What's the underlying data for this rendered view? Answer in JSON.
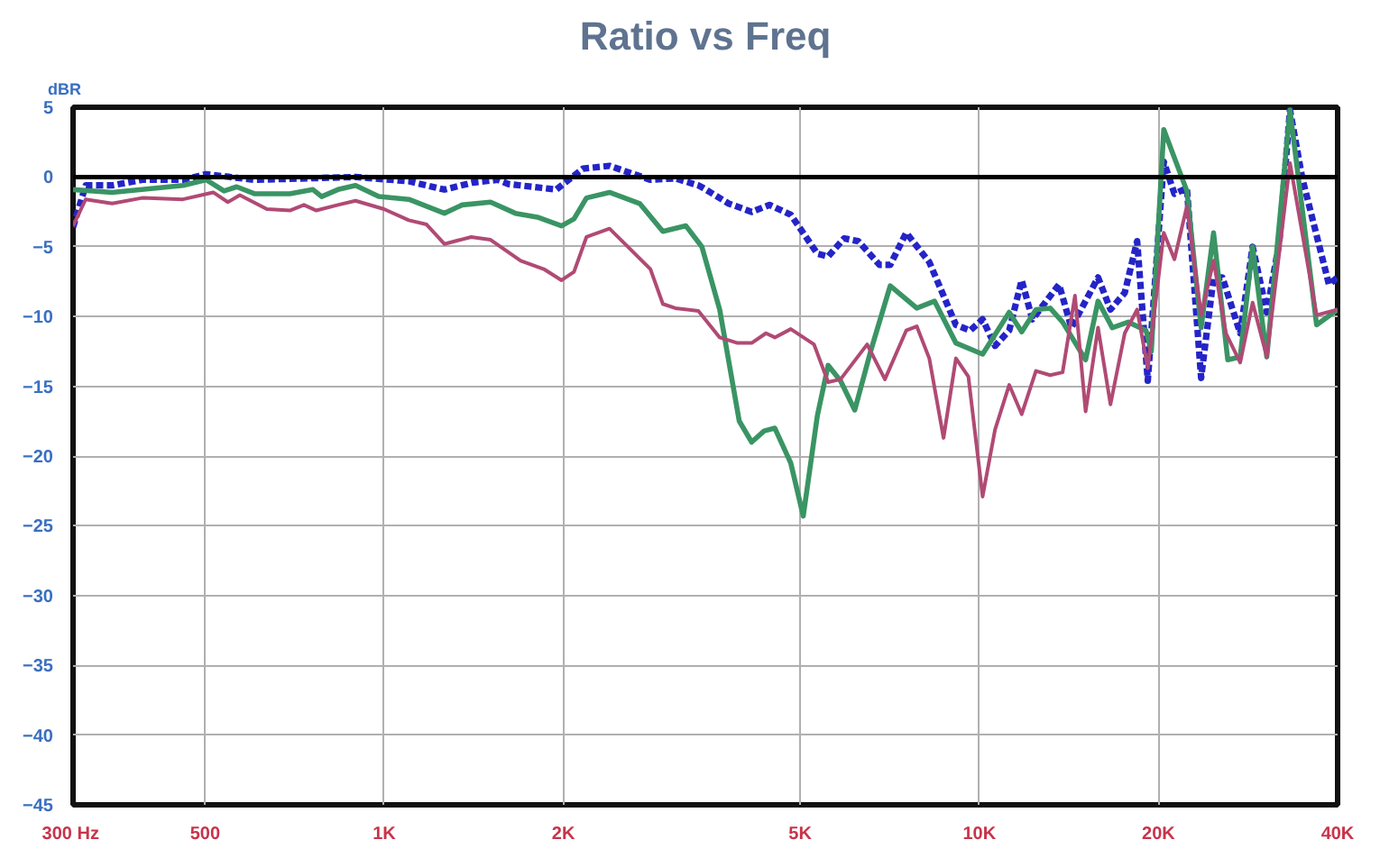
{
  "chart_data": {
    "type": "line",
    "title": "Ratio vs Freq",
    "ylabel": "dBR",
    "log": "x",
    "grid": true,
    "xlim": [
      300,
      40000
    ],
    "ylim": [
      -45,
      5
    ],
    "xticks": [
      {
        "value": 300,
        "label": "300  Hz"
      },
      500,
      {
        "value": 1000,
        "label": "1K"
      },
      {
        "value": 2000,
        "label": "2K"
      },
      {
        "value": 5000,
        "label": "5K"
      },
      {
        "value": 10000,
        "label": "10K"
      },
      {
        "value": 20000,
        "label": "20K"
      },
      {
        "value": 40000,
        "label": "40K"
      }
    ],
    "yticks": [
      5,
      0,
      -5,
      -10,
      -15,
      -20,
      -25,
      -30,
      -35,
      -40,
      -45
    ],
    "ref_lines": [
      {
        "axis": "y",
        "value": 0,
        "label": null,
        "color": "#000000"
      }
    ],
    "series": [
      {
        "color": "#2424c8",
        "line_style": "dashed",
        "x": [
          300,
          315,
          349,
          392,
          459,
          502,
          605,
          895,
          1100,
          1262,
          1409,
          1551,
          1616,
          1946,
          2157,
          2391,
          2801,
          3084,
          3372,
          3440,
          3791,
          4144,
          4440,
          4821,
          5344,
          5571,
          5925,
          6260,
          6797,
          7084,
          7536,
          8240,
          9135,
          9653,
          10128,
          10628,
          11226,
          11781,
          12279,
          13613,
          14280,
          15831,
          16611,
          17552,
          18416,
          19191,
          20415,
          21274,
          22325,
          23589,
          24752,
          25615,
          27440,
          28789,
          30414,
          31913,
          33269,
          34894,
          38682,
          40000
        ],
        "values": [
          -3.6,
          -0.6,
          -0.6,
          -0.2,
          -0.2,
          0.2,
          -0.2,
          0,
          -0.3,
          -0.9,
          -0.4,
          -0.2,
          -0.5,
          -0.9,
          0.6,
          0.8,
          -0.2,
          -0.1,
          -0.6,
          -0.8,
          -1.9,
          -2.5,
          -2.0,
          -2.7,
          -5.5,
          -5.7,
          -4.4,
          -4.6,
          -6.3,
          -6.3,
          -4.0,
          -6.1,
          -10.6,
          -11.0,
          -10.2,
          -12.1,
          -11.0,
          -7.4,
          -10.2,
          -7.7,
          -10.8,
          -7.2,
          -9.5,
          -8.3,
          -4.6,
          -14.6,
          1.1,
          -1.2,
          -0.8,
          -14.4,
          -7.2,
          -7.2,
          -11.2,
          -5.0,
          -9.7,
          -4.7,
          4.8,
          -0.1,
          -7.7,
          -7.2
        ]
      },
      {
        "color": "#3a9464",
        "line_style": "solid",
        "x": [
          300,
          349,
          459,
          502,
          538,
          565,
          605,
          694,
          759,
          785,
          836,
          895,
          979,
          1100,
          1262,
          1352,
          1509,
          1661,
          1817,
          1986,
          2084,
          2187,
          2391,
          2687,
          2939,
          3213,
          3418,
          3662,
          3950,
          4144,
          4350,
          4533,
          4821,
          5060,
          5344,
          5571,
          5845,
          6175,
          6566,
          7084,
          7850,
          8411,
          9135,
          10128,
          11226,
          11781,
          12449,
          13153,
          13802,
          15088,
          15831,
          16728,
          17792,
          19059,
          19456,
          20415,
          22325,
          23589,
          24752,
          26150,
          27440,
          28789,
          30414,
          33269,
          36878,
          40000
        ],
        "values": [
          -0.9,
          -1.1,
          -0.6,
          -0.2,
          -1.0,
          -0.7,
          -1.2,
          -1.2,
          -0.9,
          -1.4,
          -0.9,
          -0.6,
          -1.4,
          -1.6,
          -2.6,
          -2.0,
          -1.8,
          -2.6,
          -2.9,
          -3.5,
          -3.0,
          -1.5,
          -1.1,
          -1.9,
          -3.9,
          -3.5,
          -5.0,
          -9.5,
          -17.5,
          -19.0,
          -18.2,
          -18.0,
          -20.5,
          -24.3,
          -17.1,
          -13.5,
          -14.6,
          -16.7,
          -12.5,
          -7.8,
          -9.4,
          -8.9,
          -11.9,
          -12.7,
          -9.7,
          -11.1,
          -9.5,
          -9.4,
          -10.4,
          -13.1,
          -8.9,
          -10.8,
          -10.4,
          -11.0,
          -12.5,
          3.4,
          -1.0,
          -10.8,
          -4.0,
          -13.1,
          -12.9,
          -5.0,
          -12.9,
          4.8,
          -10.6,
          -9.5
        ]
      },
      {
        "color": "#b04a74",
        "line_style": "solid",
        "x": [
          300,
          315,
          349,
          392,
          459,
          516,
          546,
          572,
          635,
          694,
          733,
          769,
          836,
          895,
          999,
          1100,
          1178,
          1262,
          1400,
          1509,
          1696,
          1854,
          1986,
          2084,
          2187,
          2391,
          2801,
          2939,
          3084,
          3372,
          3662,
          3924,
          4144,
          4380,
          4533,
          4821,
          5275,
          5571,
          5845,
          6479,
          6940,
          7536,
          7850,
          8240,
          8707,
          9135,
          9585,
          10128,
          10628,
          11226,
          11781,
          12449,
          13153,
          13802,
          14479,
          15088,
          15831,
          16611,
          17552,
          18416,
          19191,
          20415,
          21274,
          22325,
          23589,
          24752,
          25970,
          27440,
          28789,
          30414,
          33269,
          36878,
          40000
        ],
        "values": [
          -3.5,
          -1.6,
          -1.9,
          -1.5,
          -1.6,
          -1.1,
          -1.8,
          -1.3,
          -2.3,
          -2.4,
          -2.0,
          -2.4,
          -2.0,
          -1.7,
          -2.3,
          -3.1,
          -3.4,
          -4.8,
          -4.3,
          -4.5,
          -6.0,
          -6.6,
          -7.4,
          -6.8,
          -4.3,
          -3.7,
          -6.6,
          -9.1,
          -9.4,
          -9.6,
          -11.5,
          -11.9,
          -11.9,
          -11.2,
          -11.5,
          -10.9,
          -12.0,
          -14.7,
          -14.5,
          -12.0,
          -14.5,
          -11.0,
          -10.7,
          -13.0,
          -18.7,
          -13.0,
          -14.3,
          -22.9,
          -18.1,
          -14.9,
          -17.0,
          -13.9,
          -14.2,
          -14.0,
          -8.5,
          -16.8,
          -10.8,
          -16.3,
          -11.2,
          -9.5,
          -13.7,
          -4.0,
          -5.9,
          -2.1,
          -9.9,
          -6.0,
          -11.2,
          -13.3,
          -9.0,
          -12.9,
          1.0,
          -9.9,
          -9.5
        ]
      }
    ]
  }
}
